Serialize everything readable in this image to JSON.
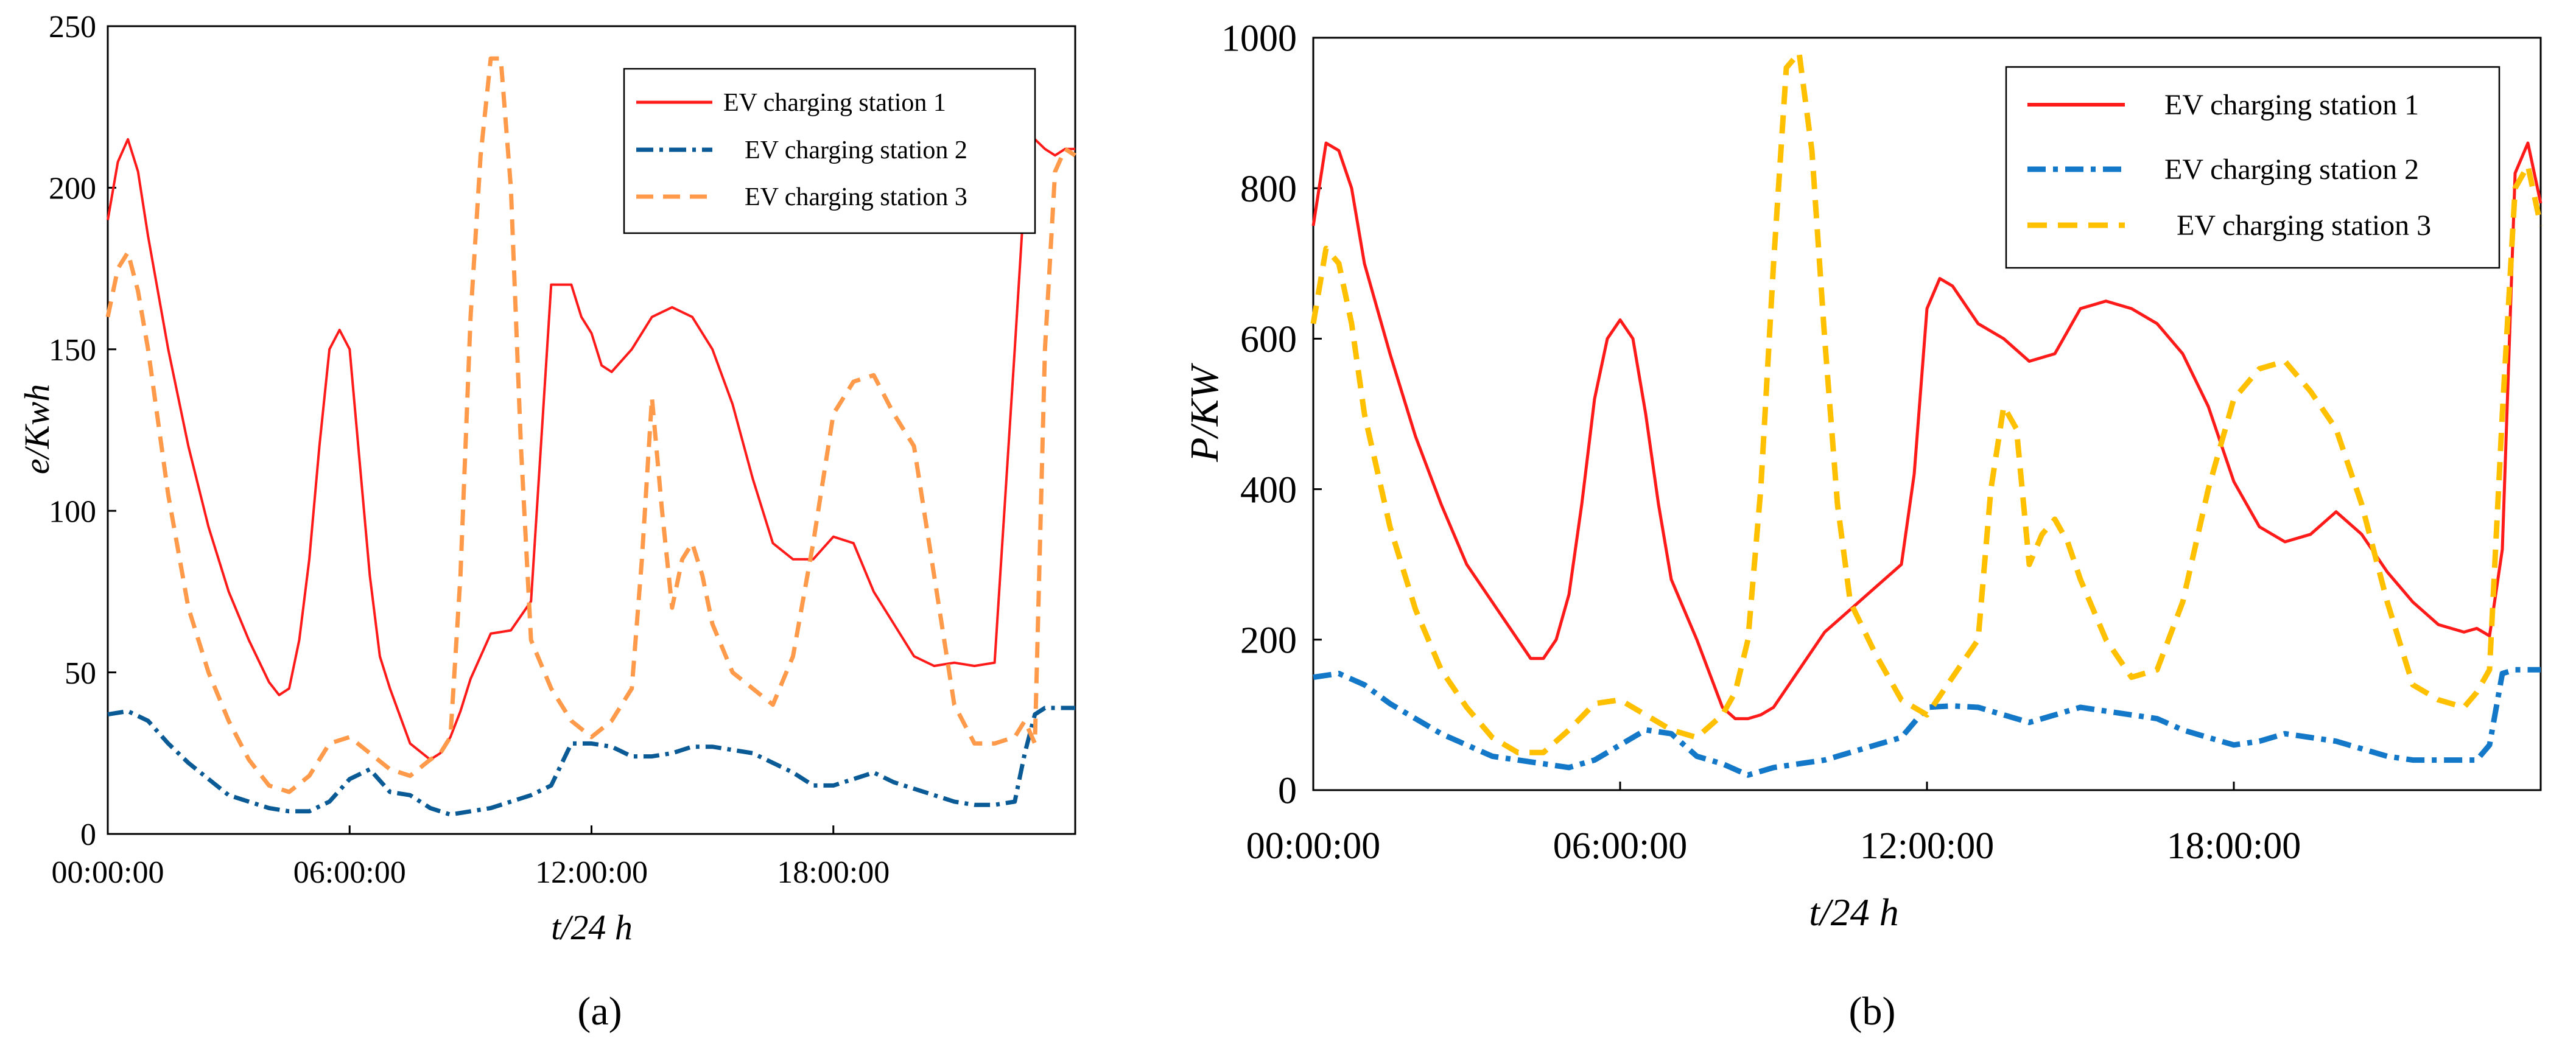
{
  "captions": {
    "a": "(a)",
    "b": "(b)"
  },
  "chart_data": [
    {
      "type": "line",
      "panel": "a",
      "xlabel": "t/24 h",
      "ylabel": "e/Kwh",
      "xlim": [
        0,
        24
      ],
      "ylim": [
        0,
        250
      ],
      "yticks": [
        0,
        50,
        100,
        150,
        200,
        250
      ],
      "xticks": [
        0,
        6,
        12,
        18
      ],
      "xtick_labels": [
        "00:00:00",
        "06:00:00",
        "12:00:00",
        "18:00:00"
      ],
      "legend_position": "top-right",
      "series": [
        {
          "name": "EV charging station 1",
          "color": "#ff1a1a",
          "style": "solid",
          "x": [
            0,
            0.25,
            0.5,
            0.75,
            1,
            1.5,
            2,
            2.5,
            3,
            3.5,
            4,
            4.25,
            4.5,
            4.75,
            5,
            5.25,
            5.5,
            5.75,
            6,
            6.25,
            6.5,
            6.75,
            7,
            7.5,
            8,
            8.25,
            8.5,
            8.75,
            9,
            9.5,
            10,
            10.5,
            11,
            11.5,
            11.75,
            12,
            12.25,
            12.5,
            13,
            13.5,
            14,
            14.5,
            15,
            15.5,
            16,
            16.5,
            17,
            17.5,
            18,
            18.5,
            19,
            19.5,
            20,
            20.5,
            21,
            21.5,
            22,
            22.5,
            22.75,
            23,
            23.25,
            23.5,
            23.75,
            24
          ],
          "y": [
            190,
            208,
            215,
            205,
            185,
            150,
            120,
            95,
            75,
            60,
            47,
            43,
            45,
            60,
            85,
            120,
            150,
            156,
            150,
            115,
            80,
            55,
            45,
            28,
            23,
            25,
            30,
            38,
            48,
            62,
            63,
            72,
            170,
            170,
            160,
            155,
            145,
            143,
            150,
            160,
            163,
            160,
            150,
            133,
            110,
            90,
            85,
            85,
            92,
            90,
            75,
            65,
            55,
            52,
            53,
            52,
            53,
            150,
            200,
            215,
            212,
            210,
            212,
            212
          ]
        },
        {
          "name": "EV charging station 2",
          "color": "#0a5a96",
          "style": "dashdot",
          "x": [
            0,
            0.5,
            1,
            1.5,
            2,
            2.5,
            3,
            3.5,
            4,
            4.5,
            5,
            5.5,
            6,
            6.5,
            7,
            7.5,
            8,
            8.5,
            9,
            9.5,
            10,
            10.5,
            11,
            11.5,
            12,
            12.5,
            13,
            13.5,
            14,
            14.5,
            15,
            15.5,
            16,
            16.5,
            17,
            17.5,
            18,
            18.5,
            19,
            19.5,
            20,
            20.5,
            21,
            21.5,
            22,
            22.5,
            22.75,
            23,
            23.25,
            23.5,
            23.75,
            24
          ],
          "y": [
            37,
            38,
            35,
            28,
            22,
            17,
            12,
            10,
            8,
            7,
            7,
            10,
            17,
            20,
            13,
            12,
            8,
            6,
            7,
            8,
            10,
            12,
            15,
            28,
            28,
            27,
            24,
            24,
            25,
            27,
            27,
            26,
            25,
            22,
            19,
            15,
            15,
            17,
            19,
            16,
            14,
            12,
            10,
            9,
            9,
            10,
            25,
            37,
            39,
            39,
            39,
            39
          ]
        },
        {
          "name": "EV charging station 3",
          "color": "#ff9a4a",
          "style": "dashed",
          "x": [
            0,
            0.25,
            0.5,
            0.75,
            1,
            1.5,
            2,
            2.5,
            3,
            3.5,
            4,
            4.5,
            5,
            5.5,
            6,
            6.5,
            7,
            7.5,
            8,
            8.25,
            8.5,
            8.75,
            9,
            9.25,
            9.5,
            9.75,
            10,
            10.25,
            10.5,
            11,
            11.5,
            12,
            12.5,
            13,
            13.25,
            13.5,
            13.75,
            14,
            14.25,
            14.5,
            14.75,
            15,
            15.5,
            16,
            16.5,
            17,
            17.5,
            18,
            18.5,
            19,
            19.5,
            20,
            20.5,
            21,
            21.5,
            22,
            22.5,
            22.75,
            23,
            23.25,
            23.5,
            23.75,
            24
          ],
          "y": [
            160,
            175,
            180,
            168,
            150,
            105,
            70,
            50,
            35,
            23,
            15,
            13,
            18,
            28,
            30,
            25,
            20,
            18,
            23,
            25,
            30,
            80,
            160,
            210,
            240,
            240,
            200,
            120,
            60,
            45,
            35,
            30,
            35,
            45,
            85,
            135,
            100,
            70,
            85,
            90,
            80,
            65,
            50,
            45,
            40,
            55,
            90,
            130,
            140,
            142,
            130,
            120,
            80,
            40,
            28,
            28,
            30,
            35,
            28,
            150,
            205,
            212,
            210
          ]
        }
      ]
    },
    {
      "type": "line",
      "panel": "b",
      "xlabel": "t/24 h",
      "ylabel": "P/KW",
      "xlim": [
        0,
        24
      ],
      "ylim": [
        0,
        1000
      ],
      "yticks": [
        0,
        200,
        400,
        600,
        800,
        1000
      ],
      "xticks": [
        0,
        6,
        12,
        18
      ],
      "xtick_labels": [
        "00:00:00",
        "06:00:00",
        "12:00:00",
        "18:00:00"
      ],
      "legend_position": "top-right",
      "series": [
        {
          "name": "EV charging station 1",
          "color": "#ff1a1a",
          "style": "solid",
          "x": [
            0,
            0.25,
            0.5,
            0.75,
            1,
            1.5,
            2,
            2.5,
            3,
            3.5,
            4,
            4.25,
            4.5,
            4.75,
            5,
            5.25,
            5.5,
            5.75,
            6,
            6.25,
            6.5,
            6.75,
            7,
            7.5,
            8,
            8.25,
            8.5,
            8.75,
            9,
            9.5,
            10,
            10.5,
            11,
            11.5,
            11.75,
            12,
            12.25,
            12.5,
            13,
            13.5,
            14,
            14.5,
            15,
            15.5,
            16,
            16.5,
            17,
            17.5,
            18,
            18.5,
            19,
            19.5,
            20,
            20.5,
            21,
            21.5,
            22,
            22.5,
            22.75,
            23,
            23.25,
            23.5,
            23.75,
            24
          ],
          "y": [
            750,
            860,
            850,
            800,
            700,
            580,
            470,
            380,
            300,
            250,
            200,
            175,
            175,
            200,
            260,
            380,
            520,
            600,
            625,
            600,
            500,
            380,
            280,
            200,
            110,
            95,
            95,
            100,
            110,
            160,
            210,
            240,
            270,
            300,
            420,
            640,
            680,
            670,
            620,
            600,
            570,
            580,
            640,
            650,
            640,
            620,
            580,
            510,
            410,
            350,
            330,
            340,
            370,
            340,
            290,
            250,
            220,
            210,
            215,
            205,
            320,
            820,
            860,
            780
          ]
        },
        {
          "name": "EV charging station 2",
          "color": "#1478c8",
          "style": "dashdot",
          "x": [
            0,
            0.5,
            1,
            1.5,
            2,
            2.5,
            3,
            3.5,
            4,
            4.5,
            5,
            5.5,
            6,
            6.5,
            7,
            7.5,
            8,
            8.5,
            9,
            9.5,
            10,
            10.5,
            11,
            11.5,
            12,
            12.5,
            13,
            13.5,
            14,
            14.5,
            15,
            15.5,
            16,
            16.5,
            17,
            17.5,
            18,
            18.5,
            19,
            19.5,
            20,
            20.5,
            21,
            21.5,
            22,
            22.5,
            22.75,
            23,
            23.25,
            23.5,
            23.75,
            24
          ],
          "y": [
            150,
            155,
            140,
            115,
            95,
            75,
            60,
            45,
            40,
            35,
            30,
            40,
            60,
            80,
            75,
            45,
            35,
            20,
            30,
            35,
            40,
            50,
            60,
            70,
            110,
            112,
            110,
            100,
            90,
            100,
            110,
            105,
            100,
            95,
            80,
            70,
            60,
            65,
            75,
            70,
            65,
            55,
            45,
            40,
            40,
            40,
            40,
            60,
            155,
            160,
            160,
            160
          ]
        },
        {
          "name": "EV charging station 3",
          "color": "#ffc000",
          "style": "dashed",
          "x": [
            0,
            0.25,
            0.5,
            0.75,
            1,
            1.5,
            2,
            2.5,
            3,
            3.5,
            4,
            4.5,
            5,
            5.5,
            6,
            6.5,
            7,
            7.5,
            8,
            8.25,
            8.5,
            8.75,
            9,
            9.25,
            9.5,
            9.75,
            10,
            10.25,
            10.5,
            11,
            11.5,
            12,
            12.5,
            13,
            13.25,
            13.5,
            13.75,
            14,
            14.25,
            14.5,
            14.75,
            15,
            15.5,
            16,
            16.5,
            17,
            17.5,
            18,
            18.5,
            19,
            19.5,
            20,
            20.5,
            21,
            21.5,
            22,
            22.5,
            22.75,
            23,
            23.25,
            23.5,
            23.75,
            24
          ],
          "y": [
            620,
            720,
            700,
            620,
            500,
            350,
            240,
            160,
            110,
            70,
            50,
            50,
            80,
            115,
            120,
            100,
            80,
            70,
            100,
            130,
            200,
            400,
            700,
            960,
            980,
            850,
            600,
            380,
            250,
            180,
            120,
            100,
            150,
            200,
            400,
            510,
            480,
            300,
            340,
            360,
            330,
            280,
            200,
            150,
            160,
            250,
            400,
            520,
            560,
            570,
            530,
            480,
            380,
            250,
            140,
            120,
            110,
            130,
            160,
            500,
            800,
            830,
            750
          ]
        }
      ]
    }
  ]
}
